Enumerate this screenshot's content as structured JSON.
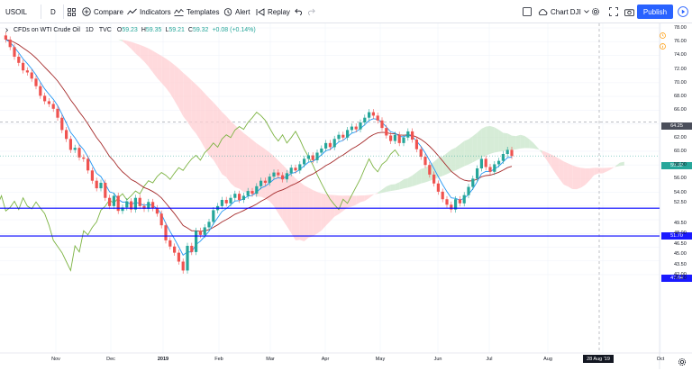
{
  "toolbar": {
    "symbol": "USOIL",
    "interval": "D",
    "compare": "Compare",
    "indicators": "Indicators",
    "templates": "Templates",
    "alert": "Alert",
    "replay": "Replay",
    "layout_name": "Chart DJI",
    "publish": "Publish"
  },
  "legend": {
    "title": "CFDs on WTI Crude Oil",
    "interval": "1D",
    "source": "TVC",
    "o_label": "O",
    "o": "59.23",
    "h_label": "H",
    "h": "59.35",
    "l_label": "L",
    "l": "59.21",
    "c_label": "C",
    "c": "59.32",
    "change": "+0.08 (+0.14%)"
  },
  "price_axis": {
    "ticks": [
      "78.00",
      "76.00",
      "74.00",
      "72.00",
      "70.00",
      "68.00",
      "66.00",
      "62.00",
      "60.00",
      "58.00",
      "56.00",
      "54.00",
      "52.50",
      "49.50",
      "48.00",
      "46.50",
      "45.00",
      "43.50",
      "42.00",
      "41.50"
    ],
    "crosshair_price": "64.25",
    "last_price": "59.32",
    "line1_price": "51.70",
    "line2_price": "47.64"
  },
  "time_axis": {
    "ticks": [
      "Nov",
      "Dec",
      "2019",
      "Feb",
      "Mar",
      "Apr",
      "May",
      "Jun",
      "Jul",
      "Aug",
      "Oct"
    ],
    "crosshair_date": "28 Aug '19"
  },
  "colors": {
    "up": "#26a69a",
    "down": "#ef5350",
    "conversion": "#2196f3",
    "base": "#a52a2a",
    "lagging": "#7cb342",
    "cloud_bull": "#c8e6c9",
    "cloud_bear": "#ffcdd2",
    "hline": "#0000ff",
    "accent": "#2962ff"
  },
  "icons": [
    "grid-icon",
    "compare-plus-icon",
    "indicators-icon",
    "templates-icon",
    "alert-clock-icon",
    "replay-icon",
    "undo-icon",
    "redo-icon",
    "fullscreen-checkbox-icon",
    "cloud-icon",
    "settings-gear-icon",
    "expand-icon",
    "camera-icon",
    "play-icon"
  ],
  "chart_data": {
    "type": "candlestick",
    "title": "CFDs on WTI Crude Oil, 1D, TVC",
    "ylim": [
      41.5,
      78.5
    ],
    "x_period": [
      "Nov 2018",
      "Oct 2019"
    ],
    "horizontal_lines": [
      51.7,
      47.64
    ],
    "last_close": 59.32,
    "crosshair": {
      "price": 64.25,
      "date": "28 Aug '19"
    },
    "overlay": "Ichimoku Cloud",
    "closes": [
      76.3,
      75.2,
      73.8,
      72.9,
      71.8,
      71.5,
      70.6,
      69.5,
      68.1,
      67.3,
      66.9,
      66.2,
      64.9,
      63.1,
      61.8,
      60.2,
      60.5,
      59.1,
      58.9,
      57.2,
      55.7,
      54.6,
      55.4,
      53.2,
      52.0,
      53.5,
      51.3,
      51.8,
      52.7,
      51.5,
      53.2,
      52.0,
      51.6,
      52.6,
      51.7,
      50.9,
      49.2,
      47.0,
      46.1,
      45.2,
      43.9,
      42.6,
      46.2,
      45.3,
      48.4,
      47.8,
      48.9,
      49.7,
      51.4,
      52.0,
      52.9,
      52.4,
      53.2,
      53.8,
      52.9,
      53.5,
      54.2,
      53.8,
      54.9,
      55.7,
      55.4,
      56.3,
      56.9,
      56.5,
      55.9,
      56.8,
      57.6,
      57.2,
      58.1,
      58.9,
      59.4,
      58.7,
      59.8,
      60.4,
      61.2,
      60.6,
      61.8,
      62.4,
      62.0,
      63.1,
      63.6,
      63.2,
      64.2,
      64.9,
      65.7,
      65.2,
      64.5,
      63.4,
      62.3,
      61.5,
      62.4,
      61.2,
      62.0,
      62.9,
      61.7,
      60.3,
      59.2,
      58.0,
      56.6,
      55.3,
      54.1,
      53.0,
      52.2,
      51.5,
      53.0,
      52.4,
      53.6,
      54.8,
      56.0,
      57.5,
      58.9,
      57.7,
      57.0,
      58.1,
      58.6,
      59.6,
      60.2,
      59.3
    ]
  }
}
